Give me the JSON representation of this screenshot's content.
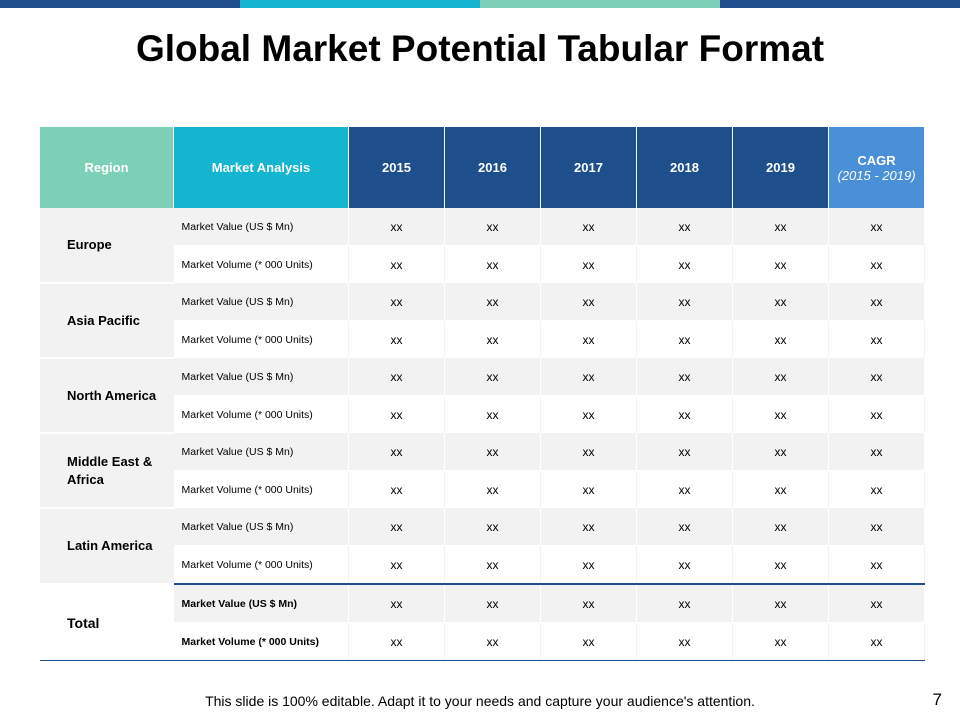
{
  "topbar_colors": [
    "#1f4e8c",
    "#13b5d0",
    "#7dcfb6",
    "#1f4e8c"
  ],
  "title": "Global Market Potential Tabular Format",
  "table": {
    "headers": {
      "region": "Region",
      "analysis": "Market Analysis",
      "years": [
        "2015",
        "2016",
        "2017",
        "2018",
        "2019"
      ],
      "cagr": "CAGR",
      "cagr_sub": "(2015 - 2019)"
    },
    "groups": [
      {
        "region": "Europe",
        "rows": [
          {
            "label": "Market Value (US $ Mn)",
            "values": [
              "xx",
              "xx",
              "xx",
              "xx",
              "xx",
              "xx"
            ]
          },
          {
            "label": "Market Volume (* 000 Units)",
            "values": [
              "xx",
              "xx",
              "xx",
              "xx",
              "xx",
              "xx"
            ]
          }
        ]
      },
      {
        "region": "Asia Pacific",
        "rows": [
          {
            "label": "Market Value (US $ Mn)",
            "values": [
              "xx",
              "xx",
              "xx",
              "xx",
              "xx",
              "xx"
            ]
          },
          {
            "label": "Market Volume (* 000 Units)",
            "values": [
              "xx",
              "xx",
              "xx",
              "xx",
              "xx",
              "xx"
            ]
          }
        ]
      },
      {
        "region": "North America",
        "rows": [
          {
            "label": "Market Value (US $ Mn)",
            "values": [
              "xx",
              "xx",
              "xx",
              "xx",
              "xx",
              "xx"
            ]
          },
          {
            "label": "Market Volume (* 000 Units)",
            "values": [
              "xx",
              "xx",
              "xx",
              "xx",
              "xx",
              "xx"
            ]
          }
        ]
      },
      {
        "region": "Middle East & Africa",
        "rows": [
          {
            "label": "Market Value (US $ Mn)",
            "values": [
              "xx",
              "xx",
              "xx",
              "xx",
              "xx",
              "xx"
            ]
          },
          {
            "label": "Market Volume (* 000 Units)",
            "values": [
              "xx",
              "xx",
              "xx",
              "xx",
              "xx",
              "xx"
            ]
          }
        ]
      },
      {
        "region": "Latin America",
        "rows": [
          {
            "label": "Market Value (US $ Mn)",
            "values": [
              "xx",
              "xx",
              "xx",
              "xx",
              "xx",
              "xx"
            ]
          },
          {
            "label": "Market Volume (* 000 Units)",
            "values": [
              "xx",
              "xx",
              "xx",
              "xx",
              "xx",
              "xx"
            ]
          }
        ]
      }
    ],
    "total": {
      "region": "Total",
      "rows": [
        {
          "label": "Market Value (US $ Mn)",
          "values": [
            "xx",
            "xx",
            "xx",
            "xx",
            "xx",
            "xx"
          ]
        },
        {
          "label": "Market Volume  (* 000 Units)",
          "values": [
            "xx",
            "xx",
            "xx",
            "xx",
            "xx",
            "xx"
          ]
        }
      ]
    }
  },
  "footer": "This slide is 100% editable. Adapt it to your needs and capture your audience's attention.",
  "page_number": "7"
}
